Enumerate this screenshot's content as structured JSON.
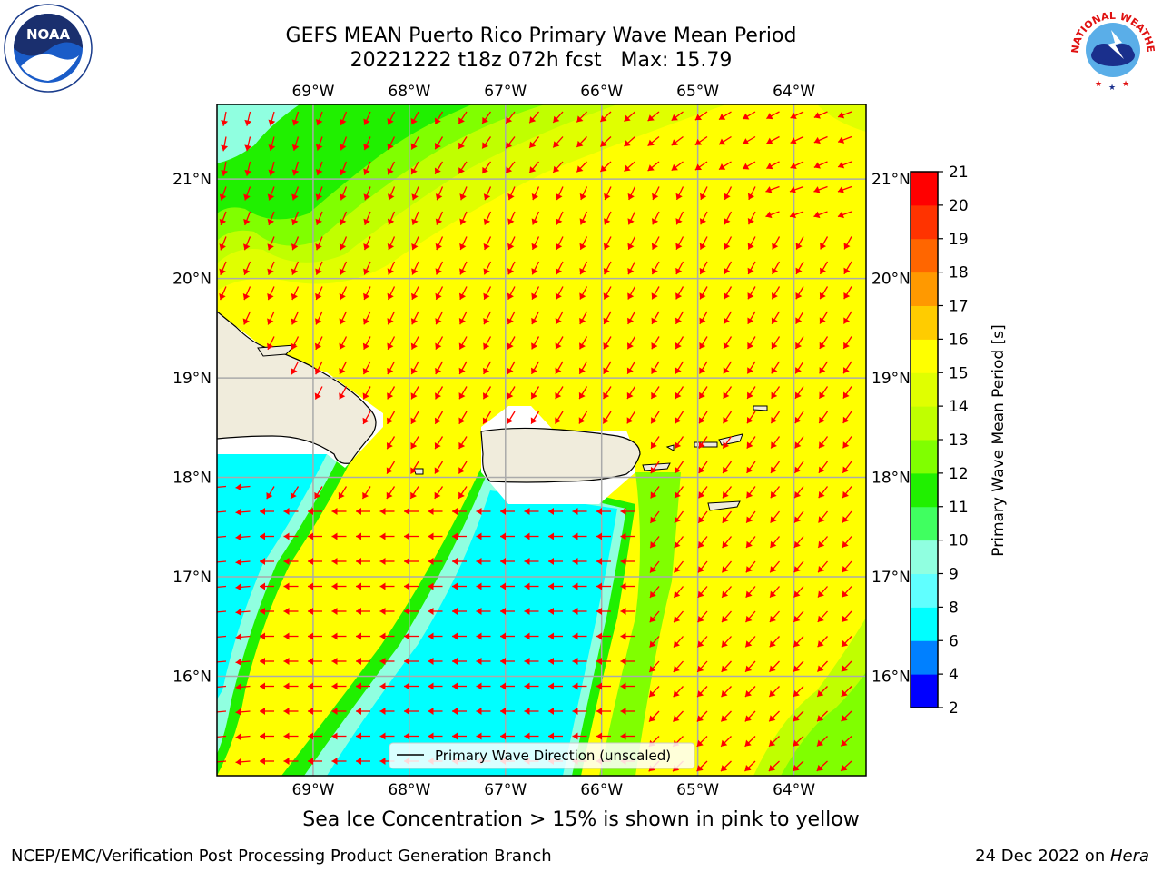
{
  "title": {
    "line1": "GEFS MEAN Puerto Rico Primary Wave Mean Period",
    "line2": "20221222 t18z 072h fcst   Max: 15.79"
  },
  "map": {
    "lon_range": [
      -70.0,
      -63.25
    ],
    "lat_range": [
      15.0,
      21.75
    ],
    "lon_ticks": [
      -69,
      -68,
      -67,
      -66,
      -65,
      -64
    ],
    "lat_ticks": [
      16,
      17,
      18,
      19,
      20,
      21
    ],
    "lon_labels": [
      "69°W",
      "68°W",
      "67°W",
      "66°W",
      "65°W",
      "64°W"
    ],
    "lat_labels": [
      "16°N",
      "17°N",
      "18°N",
      "19°N",
      "20°N",
      "21°N"
    ],
    "grid": true,
    "legend": {
      "label": "Primary Wave Direction (unscaled)",
      "placement": "bottom-center"
    },
    "arrow_color": "#ff0000",
    "land_color": "#f0ecdc"
  },
  "colorbar": {
    "label": "Primary Wave Mean Period [s]",
    "ticks": [
      "2",
      "4",
      "6",
      "8",
      "9",
      "10",
      "11",
      "12",
      "13",
      "14",
      "15",
      "16",
      "17",
      "18",
      "19",
      "20",
      "21"
    ],
    "colors": [
      "#0000ff",
      "#0080ff",
      "#00ffff",
      "#60ffff",
      "#90ffe0",
      "#40ff60",
      "#20f000",
      "#80ff00",
      "#c0ff00",
      "#e0ff00",
      "#ffff00",
      "#ffcc00",
      "#ff9900",
      "#ff6600",
      "#ff3300",
      "#ff0000"
    ]
  },
  "note": "Sea Ice Concentration > 15% is shown in pink to yellow",
  "footer": {
    "left": "NCEP/EMC/Verification Post Processing Product Generation Branch",
    "right_prefix": "24 Dec 2022 on ",
    "right_host": "Hera"
  },
  "logos": {
    "noaa": "NOAA",
    "nws_top": "NATIONAL WEATHER SERVICE"
  }
}
